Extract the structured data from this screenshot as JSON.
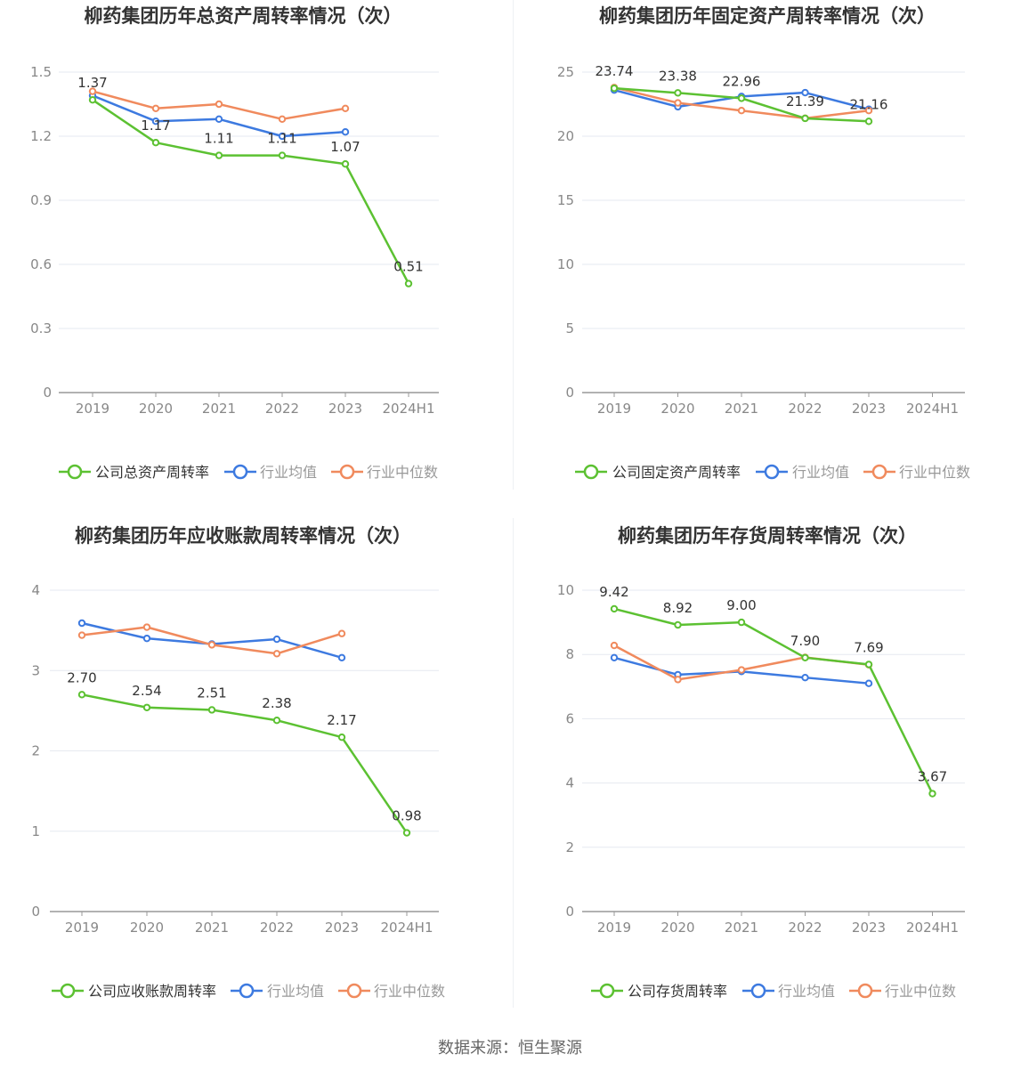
{
  "source": "数据来源：恒生聚源",
  "colors": {
    "company": "#5cc132",
    "avg": "#3d7ae0",
    "median": "#f08a5d",
    "grid": "#e6e9f0",
    "axis": "#999999",
    "tick_text": "#888888",
    "title": "#333333",
    "label": "#333333"
  },
  "chart_data": [
    {
      "type": "line",
      "title": "柳药集团历年总资产周转率情况（次）",
      "categories": [
        "2019",
        "2020",
        "2021",
        "2022",
        "2023",
        "2024H1"
      ],
      "ylim": [
        0,
        1.5
      ],
      "yticks": [
        "0",
        "0.3",
        "0.6",
        "0.9",
        "1.2",
        "1.5"
      ],
      "grid": true,
      "legend_position": "bottom",
      "series": [
        {
          "name": "公司总资产周转率",
          "key": "company",
          "values": [
            1.37,
            1.17,
            1.11,
            1.11,
            1.07,
            0.51
          ],
          "labels": [
            "1.37",
            "1.17",
            "1.11",
            "1.11",
            "1.07",
            "0.51"
          ]
        },
        {
          "name": "行业均值",
          "key": "avg",
          "values": [
            1.39,
            1.27,
            1.28,
            1.2,
            1.22,
            null
          ]
        },
        {
          "name": "行业中位数",
          "key": "median",
          "values": [
            1.41,
            1.33,
            1.35,
            1.28,
            1.33,
            null
          ]
        }
      ]
    },
    {
      "type": "line",
      "title": "柳药集团历年固定资产周转率情况（次）",
      "categories": [
        "2019",
        "2020",
        "2021",
        "2022",
        "2023",
        "2024H1"
      ],
      "ylim": [
        0,
        25
      ],
      "yticks": [
        "0",
        "5",
        "10",
        "15",
        "20",
        "25"
      ],
      "grid": true,
      "legend_position": "bottom",
      "series": [
        {
          "name": "公司固定资产周转率",
          "key": "company",
          "values": [
            23.74,
            23.38,
            22.96,
            21.39,
            21.16,
            null
          ],
          "labels": [
            "23.74",
            "23.38",
            "22.96",
            "21.39",
            "21.16",
            ""
          ]
        },
        {
          "name": "行业均值",
          "key": "avg",
          "values": [
            23.6,
            22.3,
            23.1,
            23.4,
            22.1,
            null
          ]
        },
        {
          "name": "行业中位数",
          "key": "median",
          "values": [
            23.8,
            22.6,
            22.0,
            21.4,
            22.0,
            null
          ]
        }
      ]
    },
    {
      "type": "line",
      "title": "柳药集团历年应收账款周转率情况（次）",
      "categories": [
        "2019",
        "2020",
        "2021",
        "2022",
        "2023",
        "2024H1"
      ],
      "ylim": [
        0,
        4
      ],
      "yticks": [
        "0",
        "1",
        "2",
        "3",
        "4"
      ],
      "grid": true,
      "legend_position": "bottom",
      "series": [
        {
          "name": "公司应收账款周转率",
          "key": "company",
          "values": [
            2.7,
            2.54,
            2.51,
            2.38,
            2.17,
            0.98
          ],
          "labels": [
            "2.70",
            "2.54",
            "2.51",
            "2.38",
            "2.17",
            "0.98"
          ]
        },
        {
          "name": "行业均值",
          "key": "avg",
          "values": [
            3.59,
            3.4,
            3.33,
            3.39,
            3.16,
            null
          ]
        },
        {
          "name": "行业中位数",
          "key": "median",
          "values": [
            3.44,
            3.54,
            3.32,
            3.21,
            3.46,
            null
          ]
        }
      ]
    },
    {
      "type": "line",
      "title": "柳药集团历年存货周转率情况（次）",
      "categories": [
        "2019",
        "2020",
        "2021",
        "2022",
        "2023",
        "2024H1"
      ],
      "ylim": [
        0,
        10
      ],
      "yticks": [
        "0",
        "2",
        "4",
        "6",
        "8",
        "10"
      ],
      "grid": true,
      "legend_position": "bottom",
      "series": [
        {
          "name": "公司存货周转率",
          "key": "company",
          "values": [
            9.42,
            8.92,
            9.0,
            7.9,
            7.69,
            3.67
          ],
          "labels": [
            "9.42",
            "8.92",
            "9.00",
            "7.90",
            "7.69",
            "3.67"
          ]
        },
        {
          "name": "行业均值",
          "key": "avg",
          "values": [
            7.9,
            7.37,
            7.47,
            7.28,
            7.1,
            null
          ]
        },
        {
          "name": "行业中位数",
          "key": "median",
          "values": [
            8.28,
            7.22,
            7.52,
            7.91,
            7.68,
            null
          ]
        }
      ]
    }
  ]
}
